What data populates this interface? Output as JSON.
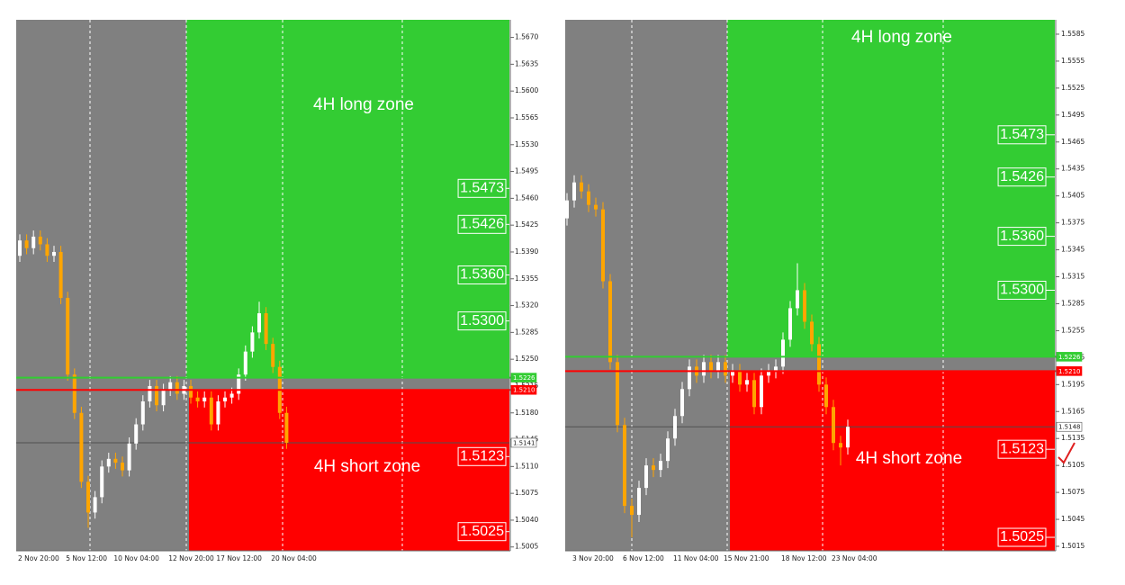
{
  "chart_data": [
    {
      "type": "candlestick",
      "categories": [
        "2 Nov 20:00",
        null,
        null,
        null,
        null,
        null,
        null,
        "5 Nov 12:00",
        null,
        null,
        null,
        null,
        null,
        null,
        "10 Nov 04:00",
        null,
        null,
        null,
        null,
        null,
        null,
        null,
        "12 Nov 20:00",
        null,
        null,
        null,
        null,
        null,
        null,
        "17 Nov 12:00",
        null,
        null,
        null,
        null,
        null,
        null,
        null,
        "20 Nov 04:00",
        null,
        null
      ],
      "open": [
        1.5385,
        1.5405,
        1.5395,
        1.541,
        1.54,
        1.5385,
        1.539,
        1.533,
        1.523,
        1.518,
        1.509,
        1.505,
        1.507,
        1.511,
        1.512,
        1.5115,
        1.5105,
        1.514,
        1.5165,
        1.5195,
        1.5215,
        1.519,
        1.521,
        1.522,
        1.5205,
        1.5215,
        1.52,
        1.5195,
        1.52,
        1.5165,
        1.5195,
        1.52,
        1.5205,
        1.523,
        1.526,
        1.5285,
        1.531,
        1.527,
        1.524,
        1.518
      ],
      "high": [
        1.5413,
        1.5413,
        1.5418,
        1.5418,
        1.5408,
        1.5398,
        1.5398,
        1.5338,
        1.5238,
        1.5188,
        1.5098,
        1.5078,
        1.5118,
        1.5128,
        1.5128,
        1.5123,
        1.5148,
        1.5173,
        1.5203,
        1.5223,
        1.5223,
        1.5218,
        1.5228,
        1.5228,
        1.5223,
        1.5223,
        1.5208,
        1.5208,
        1.5208,
        1.5203,
        1.5208,
        1.5213,
        1.5238,
        1.5268,
        1.5293,
        1.5325,
        1.5318,
        1.5278,
        1.5248,
        1.5188
      ],
      "low": [
        1.5377,
        1.5387,
        1.5387,
        1.5392,
        1.5377,
        1.5377,
        1.5322,
        1.5222,
        1.5172,
        1.5082,
        1.503,
        1.5042,
        1.5062,
        1.5102,
        1.5107,
        1.5097,
        1.5097,
        1.5132,
        1.5157,
        1.5187,
        1.5182,
        1.5182,
        1.5202,
        1.5197,
        1.5197,
        1.5192,
        1.5187,
        1.5187,
        1.5157,
        1.5157,
        1.5187,
        1.5192,
        1.5197,
        1.5222,
        1.5252,
        1.5277,
        1.5262,
        1.5232,
        1.5172,
        1.5133
      ],
      "close": [
        1.5405,
        1.5395,
        1.541,
        1.54,
        1.5385,
        1.539,
        1.533,
        1.523,
        1.518,
        1.509,
        1.505,
        1.507,
        1.511,
        1.512,
        1.5115,
        1.5105,
        1.514,
        1.5165,
        1.5195,
        1.5215,
        1.519,
        1.521,
        1.522,
        1.5205,
        1.5215,
        1.52,
        1.5195,
        1.52,
        1.5165,
        1.5195,
        1.52,
        1.5205,
        1.523,
        1.526,
        1.5285,
        1.531,
        1.527,
        1.524,
        1.518,
        1.5141
      ],
      "colors": {
        "up": "#ffffff",
        "down": "#ffa500",
        "background": "#808080"
      },
      "ylim": [
        1.5,
        1.5693
      ],
      "yticks": [
        {
          "value": 1.567,
          "label": "1.5670"
        },
        1.5635,
        {
          "value": 1.56,
          "label": "1.5600"
        },
        1.5565,
        {
          "value": 1.553,
          "label": "1.5530"
        },
        1.5495,
        {
          "value": 1.546,
          "label": "1.5460"
        },
        1.5425,
        {
          "value": 1.539,
          "label": "1.5390"
        },
        1.5355,
        {
          "value": 1.532,
          "label": "1.5320"
        },
        1.5285,
        {
          "value": 1.525,
          "label": "1.5250"
        },
        1.5215,
        {
          "value": 1.518,
          "label": "1.5180"
        },
        1.5145,
        {
          "value": 1.511,
          "label": "1.5110"
        },
        1.5075,
        {
          "value": 1.504,
          "label": "1.5040"
        },
        1.5005
      ],
      "price_lines": {
        "values": [
          1.5226,
          1.521,
          1.5141
        ],
        "value_labels": [
          "1.5226",
          "1.5210",
          "1.5141"
        ],
        "colors": [
          "#32cd32",
          "#ff0000",
          "#505050"
        ]
      },
      "levels": {
        "values": [
          1.5473,
          1.5426,
          1.536,
          1.53,
          1.5123,
          1.5025
        ],
        "value_labels": [
          "1.5473",
          "1.5426",
          "1.5360",
          "1.5300",
          "1.5123",
          "1.5025"
        ]
      },
      "zones": [
        {
          "name": "4H long zone",
          "color": "#33cc33"
        },
        {
          "name": "4H short zone",
          "color": "#ff0000"
        }
      ]
    },
    {
      "type": "candlestick",
      "categories": [
        null,
        "3 Nov 20:00",
        null,
        null,
        null,
        null,
        null,
        null,
        "6 Nov 12:00",
        null,
        null,
        null,
        null,
        null,
        null,
        "11 Nov 04:00",
        null,
        null,
        null,
        null,
        null,
        null,
        "15 Nov 21:00",
        null,
        null,
        null,
        null,
        null,
        null,
        null,
        "18 Nov 12:00",
        null,
        null,
        null,
        null,
        null,
        null,
        "23 Nov 04:00",
        null,
        null
      ],
      "open": [
        1.538,
        1.54,
        1.542,
        1.541,
        1.5395,
        1.539,
        1.531,
        1.522,
        1.515,
        1.506,
        1.505,
        1.508,
        1.5105,
        1.51,
        1.511,
        1.5135,
        1.516,
        1.519,
        1.5215,
        1.5205,
        1.522,
        1.521,
        1.522,
        1.5205,
        1.521,
        1.5195,
        1.52,
        1.517,
        1.5205,
        1.521,
        1.5215,
        1.5245,
        1.528,
        1.53,
        1.5265,
        1.524,
        1.5195,
        1.517,
        1.513,
        1.5125
      ],
      "high": [
        1.5408,
        1.5428,
        1.5428,
        1.5418,
        1.5403,
        1.5398,
        1.5318,
        1.5228,
        1.5158,
        1.5068,
        1.5088,
        1.5113,
        1.5113,
        1.5118,
        1.5143,
        1.5168,
        1.5198,
        1.5223,
        1.5223,
        1.5228,
        1.5228,
        1.5228,
        1.5228,
        1.5218,
        1.5218,
        1.5208,
        1.5208,
        1.5213,
        1.5218,
        1.5223,
        1.5253,
        1.5288,
        1.533,
        1.5308,
        1.5273,
        1.5248,
        1.5203,
        1.5178,
        1.5138,
        1.5156
      ],
      "low": [
        1.5372,
        1.5392,
        1.5402,
        1.5387,
        1.5382,
        1.5302,
        1.5212,
        1.5142,
        1.5052,
        1.5025,
        1.5042,
        1.5072,
        1.5092,
        1.5092,
        1.5102,
        1.5127,
        1.5152,
        1.5182,
        1.5197,
        1.5197,
        1.5202,
        1.5202,
        1.5197,
        1.5197,
        1.5187,
        1.5187,
        1.5162,
        1.5162,
        1.5197,
        1.5202,
        1.5207,
        1.5237,
        1.5272,
        1.5257,
        1.5232,
        1.5187,
        1.5162,
        1.5122,
        1.5105,
        1.5117
      ],
      "close": [
        1.54,
        1.542,
        1.541,
        1.5395,
        1.539,
        1.531,
        1.522,
        1.515,
        1.506,
        1.505,
        1.508,
        1.5105,
        1.51,
        1.511,
        1.5135,
        1.516,
        1.519,
        1.5215,
        1.5205,
        1.522,
        1.521,
        1.522,
        1.5205,
        1.521,
        1.5195,
        1.52,
        1.517,
        1.5205,
        1.521,
        1.5215,
        1.5245,
        1.528,
        1.53,
        1.5265,
        1.524,
        1.5195,
        1.517,
        1.513,
        1.5125,
        1.5148
      ],
      "colors": {
        "up": "#ffffff",
        "down": "#ffa500",
        "background": "#808080"
      },
      "ylim": [
        1.501,
        1.5601
      ],
      "yticks": [
        1.5585,
        1.5555,
        1.5525,
        1.5495,
        1.5465,
        1.5435,
        1.5405,
        1.5375,
        1.5345,
        1.5315,
        1.5285,
        1.5255,
        1.5225,
        1.5195,
        1.5165,
        1.5135,
        1.5105,
        1.5075,
        1.5045,
        1.5015
      ],
      "price_lines": {
        "values": [
          1.5226,
          1.521,
          1.5148
        ],
        "value_labels": [
          "1.5226",
          "1.5210",
          "1.5148"
        ],
        "colors": [
          "#32cd32",
          "#ff0000",
          "#505050"
        ]
      },
      "levels": {
        "values": [
          1.5473,
          1.5426,
          1.536,
          1.53,
          1.5123,
          1.5025
        ],
        "value_labels": [
          "1.5473",
          "1.5426",
          "1.5360",
          "1.5300",
          "1.5123",
          "1.5025"
        ]
      },
      "zones": [
        {
          "name": "4H long zone",
          "color": "#33cc33"
        },
        {
          "name": "4H short zone",
          "color": "#ff0000"
        }
      ]
    }
  ]
}
